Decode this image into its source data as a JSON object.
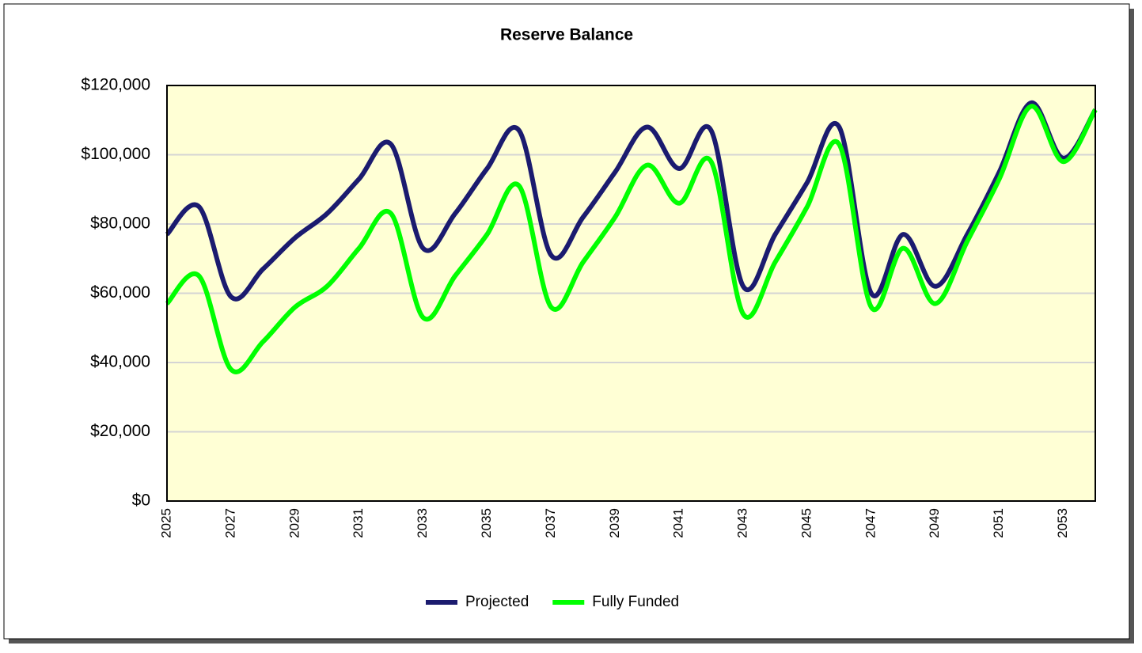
{
  "chart_data": {
    "type": "line",
    "title": "Reserve Balance",
    "categories": [
      "2025",
      null,
      "2027",
      null,
      "2029",
      null,
      "2031",
      null,
      "2033",
      null,
      "2035",
      null,
      "2037",
      null,
      "2039",
      null,
      "2041",
      null,
      "2043",
      null,
      "2045",
      null,
      "2047",
      null,
      "2049",
      null,
      "2051",
      null,
      "2053",
      null
    ],
    "series": [
      {
        "name": "Projected",
        "color": "#1b1b6f",
        "values": [
          77000,
          85000,
          59000,
          67000,
          76000,
          83000,
          93000,
          103000,
          73000,
          83000,
          96000,
          107000,
          71000,
          82000,
          95000,
          108000,
          96000,
          107000,
          62000,
          77000,
          92000,
          108000,
          60000,
          77000,
          62000,
          77000,
          95000,
          115000,
          99000,
          113000
        ]
      },
      {
        "name": "Fully Funded",
        "color": "#00ff00",
        "values": [
          57000,
          65000,
          38000,
          46000,
          56000,
          62000,
          73000,
          83000,
          53000,
          65000,
          77000,
          91000,
          56000,
          69000,
          82000,
          97000,
          86000,
          98000,
          54000,
          69000,
          85000,
          103000,
          56000,
          73000,
          57000,
          75000,
          93000,
          114000,
          98000,
          113000
        ]
      }
    ],
    "ylim": [
      0,
      120000
    ],
    "yticks": [
      {
        "value": 0,
        "label": "$0"
      },
      {
        "value": 20000,
        "label": "$20,000"
      },
      {
        "value": 40000,
        "label": "$40,000"
      },
      {
        "value": 60000,
        "label": "$60,000"
      },
      {
        "value": 80000,
        "label": "$80,000"
      },
      {
        "value": 100000,
        "label": "$100,000"
      },
      {
        "value": 120000,
        "label": "$120,000"
      }
    ],
    "grid": true,
    "legend": "bottom"
  }
}
